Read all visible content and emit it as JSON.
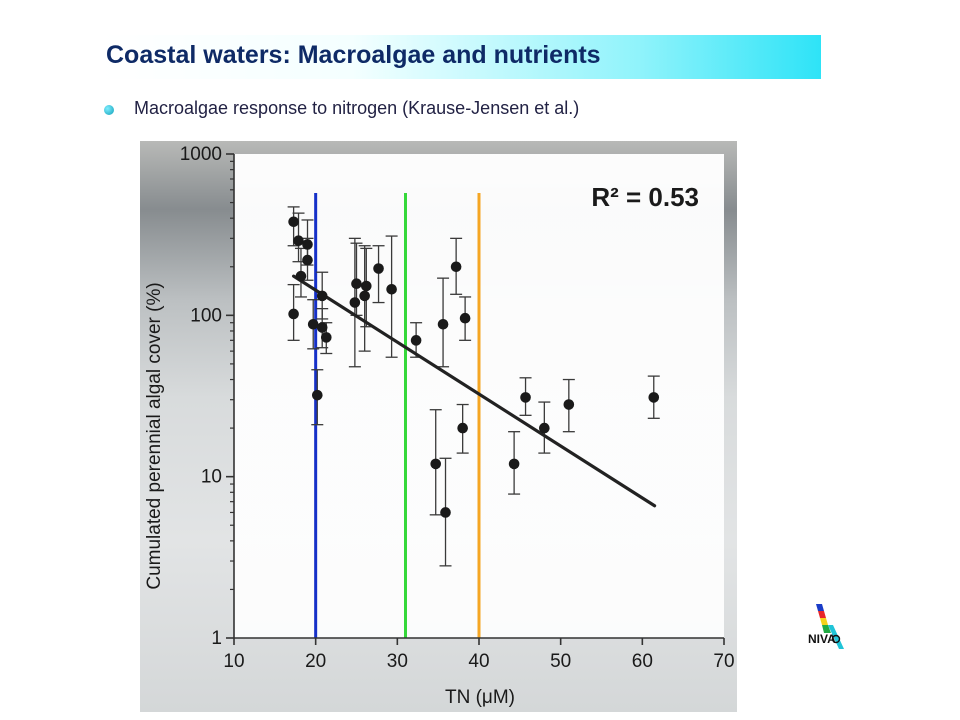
{
  "slide": {
    "title": "Coastal waters: Macroalgae and nutrients",
    "bullet": "Macroalgae response to nitrogen (Krause-Jensen et al.)",
    "logo_text": "NIVA"
  },
  "colors": {
    "title": "#0e2a66",
    "bullet": "#16b4cc",
    "point": "#1a1a1a",
    "vline_blue": "#1530c8",
    "vline_green": "#35d83a",
    "vline_orange": "#f5a623"
  },
  "chart_data": {
    "type": "scatter",
    "xlabel": "TN (μM)",
    "ylabel": "Cumulated perennial algal cover (%)",
    "xlim": [
      10,
      70
    ],
    "ylim": [
      1,
      1000
    ],
    "yscale": "log",
    "x_ticks": [
      10,
      20,
      30,
      40,
      50,
      60,
      70
    ],
    "y_ticks": [
      1,
      10,
      100,
      1000
    ],
    "annotation": "R² = 0.53",
    "grid": false,
    "vertical_lines": [
      {
        "x": 20,
        "color": "blue"
      },
      {
        "x": 31,
        "color": "green"
      },
      {
        "x": 40,
        "color": "orange"
      }
    ],
    "regression": {
      "x": [
        17.3,
        61.5
      ],
      "y": [
        175,
        6.6
      ]
    },
    "points": [
      {
        "x": 17.3,
        "y": 380,
        "lo": 270,
        "hi": 470
      },
      {
        "x": 17.3,
        "y": 102,
        "lo": 70,
        "hi": 155
      },
      {
        "x": 17.9,
        "y": 290,
        "lo": 215,
        "hi": 430
      },
      {
        "x": 18.2,
        "y": 175,
        "lo": 130,
        "hi": 260
      },
      {
        "x": 19.0,
        "y": 275,
        "lo": 205,
        "hi": 390
      },
      {
        "x": 19.0,
        "y": 220,
        "lo": 165,
        "hi": 300
      },
      {
        "x": 19.7,
        "y": 88,
        "lo": 62,
        "hi": 125
      },
      {
        "x": 20.2,
        "y": 32,
        "lo": 21,
        "hi": 46
      },
      {
        "x": 20.8,
        "y": 132,
        "lo": 95,
        "hi": 185
      },
      {
        "x": 20.8,
        "y": 84,
        "lo": 63,
        "hi": 110
      },
      {
        "x": 21.3,
        "y": 73,
        "lo": 58,
        "hi": 90
      },
      {
        "x": 24.8,
        "y": 120,
        "lo": 48,
        "hi": 300
      },
      {
        "x": 25.0,
        "y": 157,
        "lo": 100,
        "hi": 280
      },
      {
        "x": 26.0,
        "y": 132,
        "lo": 60,
        "hi": 270
      },
      {
        "x": 26.2,
        "y": 152,
        "lo": 85,
        "hi": 260
      },
      {
        "x": 27.7,
        "y": 195,
        "lo": 120,
        "hi": 270
      },
      {
        "x": 29.3,
        "y": 145,
        "lo": 55,
        "hi": 310
      },
      {
        "x": 32.3,
        "y": 70,
        "lo": 55,
        "hi": 90
      },
      {
        "x": 34.7,
        "y": 12,
        "lo": 5.8,
        "hi": 26
      },
      {
        "x": 35.6,
        "y": 88,
        "lo": 48,
        "hi": 170
      },
      {
        "x": 35.9,
        "y": 6,
        "lo": 2.8,
        "hi": 13
      },
      {
        "x": 37.2,
        "y": 200,
        "lo": 135,
        "hi": 300
      },
      {
        "x": 38.0,
        "y": 20,
        "lo": 14,
        "hi": 28
      },
      {
        "x": 38.3,
        "y": 96,
        "lo": 70,
        "hi": 130
      },
      {
        "x": 44.3,
        "y": 12,
        "lo": 7.8,
        "hi": 19
      },
      {
        "x": 45.7,
        "y": 31,
        "lo": 24,
        "hi": 41
      },
      {
        "x": 48.0,
        "y": 20,
        "lo": 14,
        "hi": 29
      },
      {
        "x": 51.0,
        "y": 28,
        "lo": 19,
        "hi": 40
      },
      {
        "x": 61.4,
        "y": 31,
        "lo": 23,
        "hi": 42
      }
    ]
  }
}
